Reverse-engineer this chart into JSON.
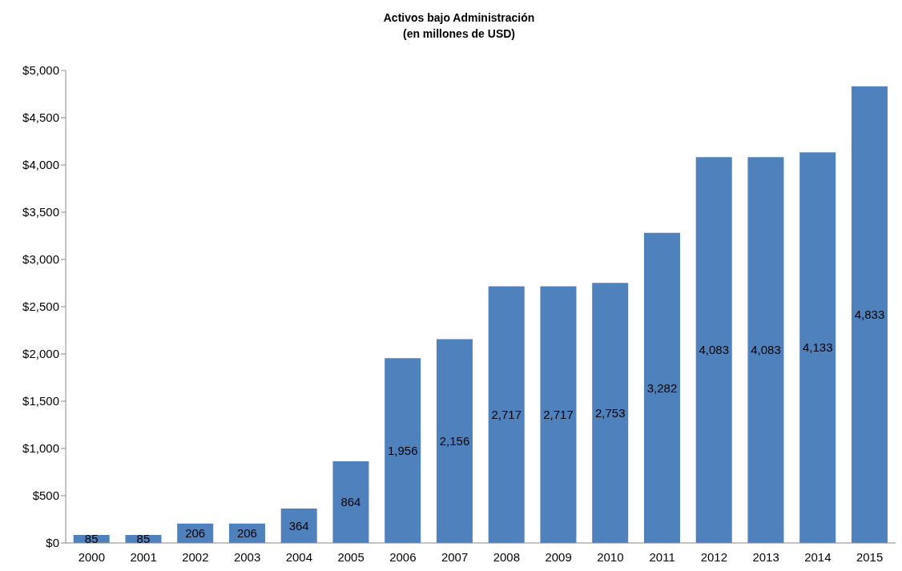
{
  "chart_data": {
    "type": "bar",
    "title": "Activos bajo Administración\n(en millones de USD)",
    "categories": [
      "2000",
      "2001",
      "2002",
      "2003",
      "2004",
      "2005",
      "2006",
      "2007",
      "2008",
      "2009",
      "2010",
      "2011",
      "2012",
      "2013",
      "2014",
      "2015"
    ],
    "values": [
      85,
      85,
      206,
      206,
      364,
      864,
      1956,
      2156,
      2717,
      2717,
      2753,
      3282,
      4083,
      4083,
      4133,
      4833
    ],
    "value_labels": [
      "85",
      "85",
      "206",
      "206",
      "364",
      "864",
      "1,956",
      "2,156",
      "2,717",
      "2,717",
      "2,753",
      "3,282",
      "4,083",
      "4,083",
      "4,133",
      "4,833"
    ],
    "color": "#4f81bd",
    "grid": false,
    "legend": false,
    "ylim": [
      0,
      5000
    ],
    "yticks": [
      {
        "value": 0,
        "label": "$0"
      },
      {
        "value": 500,
        "label": "$500"
      },
      {
        "value": 1000,
        "label": "$1,000"
      },
      {
        "value": 1500,
        "label": "$1,500"
      },
      {
        "value": 2000,
        "label": "$2,000"
      },
      {
        "value": 2500,
        "label": "$2,500"
      },
      {
        "value": 3000,
        "label": "$3,000"
      },
      {
        "value": 3500,
        "label": "$3,500"
      },
      {
        "value": 4000,
        "label": "$4,000"
      },
      {
        "value": 4500,
        "label": "$4,500"
      },
      {
        "value": 5000,
        "label": "$5,000"
      }
    ]
  }
}
